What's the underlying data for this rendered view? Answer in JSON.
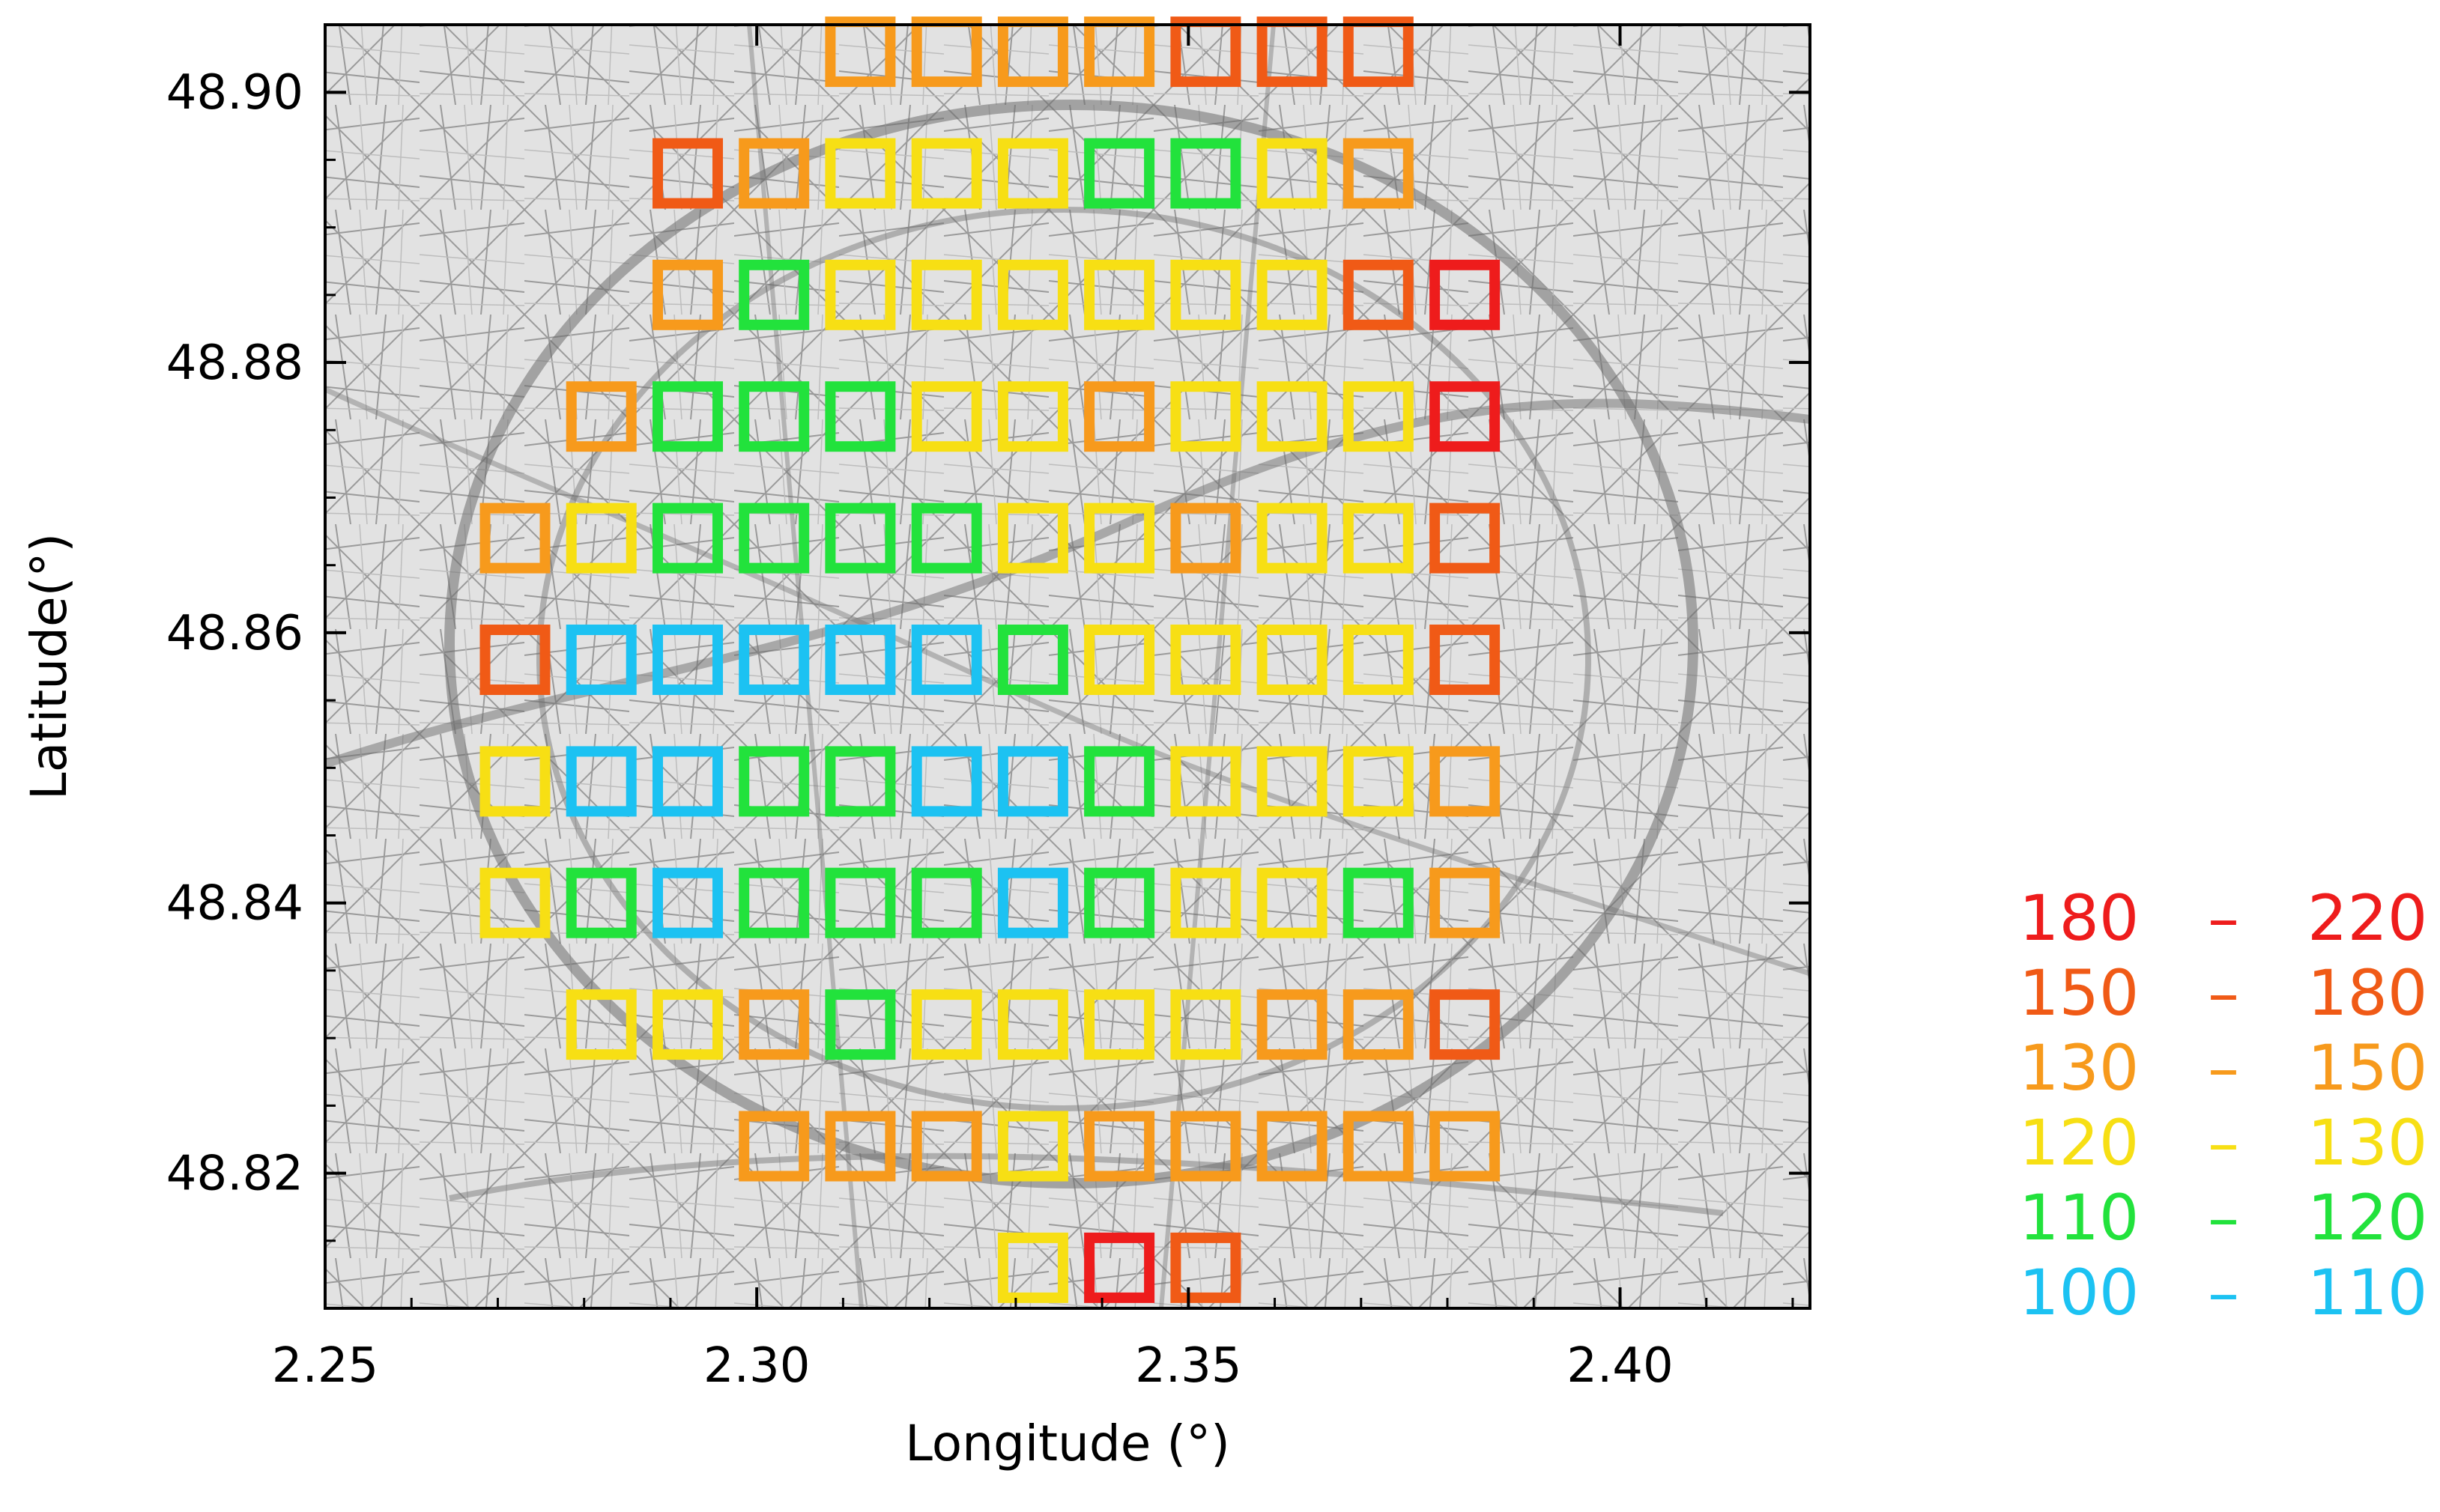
{
  "chart_data": {
    "type": "scatter",
    "marker": "open-square",
    "title": "",
    "xlabel": "Longitude (°)",
    "ylabel": "Latitude(°)",
    "xlim": [
      2.25,
      2.422
    ],
    "ylim": [
      48.81,
      48.905
    ],
    "xticks": [
      2.25,
      2.3,
      2.35,
      2.4
    ],
    "xtick_labels": [
      "2.25",
      "2.30",
      "2.35",
      "2.40"
    ],
    "yticks": [
      48.82,
      48.84,
      48.86,
      48.88,
      48.9
    ],
    "ytick_labels": [
      "48.82",
      "48.84",
      "48.86",
      "48.88",
      "48.90"
    ],
    "grid": false,
    "background": "grayscale street map of Paris",
    "legend_position": "right",
    "legend": [
      {
        "low": "180",
        "dash": "–",
        "high": "220",
        "color": "#ee1c1c"
      },
      {
        "low": "150",
        "dash": "–",
        "high": "180",
        "color": "#f05a16"
      },
      {
        "low": "130",
        "dash": "–",
        "high": "150",
        "color": "#f79a1c"
      },
      {
        "low": "120",
        "dash": "–",
        "high": "130",
        "color": "#f7df14"
      },
      {
        "low": "110",
        "dash": "–",
        "high": "120",
        "color": "#22e23c"
      },
      {
        "low": "100",
        "dash": "–",
        "high": "110",
        "color": "#1cc2f2"
      }
    ],
    "rows": [
      {
        "lat": 48.903,
        "lons": [
          2.312,
          2.322,
          2.332,
          2.342,
          2.352,
          2.362,
          2.372
        ],
        "classes": [
          2,
          2,
          2,
          2,
          1,
          1,
          1
        ]
      },
      {
        "lat": 48.894,
        "lons": [
          2.292,
          2.302,
          2.312,
          2.322,
          2.332,
          2.342,
          2.352,
          2.362,
          2.372
        ],
        "classes": [
          1,
          2,
          3,
          3,
          3,
          4,
          4,
          3,
          2
        ]
      },
      {
        "lat": 48.885,
        "lons": [
          2.292,
          2.302,
          2.312,
          2.322,
          2.332,
          2.342,
          2.352,
          2.362,
          2.372,
          2.382
        ],
        "classes": [
          2,
          4,
          3,
          3,
          3,
          3,
          3,
          3,
          1,
          0
        ]
      },
      {
        "lat": 48.876,
        "lons": [
          2.282,
          2.292,
          2.302,
          2.312,
          2.322,
          2.332,
          2.342,
          2.352,
          2.362,
          2.372,
          2.382
        ],
        "classes": [
          2,
          4,
          4,
          4,
          3,
          3,
          2,
          3,
          3,
          3,
          0
        ]
      },
      {
        "lat": 48.867,
        "lons": [
          2.272,
          2.282,
          2.292,
          2.302,
          2.312,
          2.322,
          2.332,
          2.342,
          2.352,
          2.362,
          2.372,
          2.382
        ],
        "classes": [
          2,
          3,
          4,
          4,
          4,
          4,
          3,
          3,
          2,
          3,
          3,
          1
        ]
      },
      {
        "lat": 48.858,
        "lons": [
          2.272,
          2.282,
          2.292,
          2.302,
          2.312,
          2.322,
          2.332,
          2.342,
          2.352,
          2.362,
          2.372,
          2.382
        ],
        "classes": [
          1,
          5,
          5,
          5,
          5,
          5,
          4,
          3,
          3,
          3,
          3,
          1
        ]
      },
      {
        "lat": 48.849,
        "lons": [
          2.272,
          2.282,
          2.292,
          2.302,
          2.312,
          2.322,
          2.332,
          2.342,
          2.352,
          2.362,
          2.372,
          2.382
        ],
        "classes": [
          3,
          5,
          5,
          4,
          4,
          5,
          5,
          4,
          3,
          3,
          3,
          2
        ]
      },
      {
        "lat": 48.84,
        "lons": [
          2.272,
          2.282,
          2.292,
          2.302,
          2.312,
          2.322,
          2.332,
          2.342,
          2.352,
          2.362,
          2.372,
          2.382
        ],
        "classes": [
          3,
          4,
          5,
          4,
          4,
          4,
          5,
          4,
          3,
          3,
          4,
          2
        ]
      },
      {
        "lat": 48.831,
        "lons": [
          2.282,
          2.292,
          2.302,
          2.312,
          2.322,
          2.332,
          2.342,
          2.352,
          2.362,
          2.372,
          2.382
        ],
        "classes": [
          3,
          3,
          2,
          4,
          3,
          3,
          3,
          3,
          2,
          2,
          1
        ]
      },
      {
        "lat": 48.822,
        "lons": [
          2.302,
          2.312,
          2.322,
          2.332,
          2.342,
          2.352,
          2.362,
          2.372,
          2.382
        ],
        "classes": [
          2,
          2,
          2,
          3,
          2,
          2,
          2,
          2,
          2
        ]
      },
      {
        "lat": 48.813,
        "lons": [
          2.332,
          2.342,
          2.352
        ],
        "classes": [
          3,
          0,
          1
        ]
      }
    ]
  }
}
